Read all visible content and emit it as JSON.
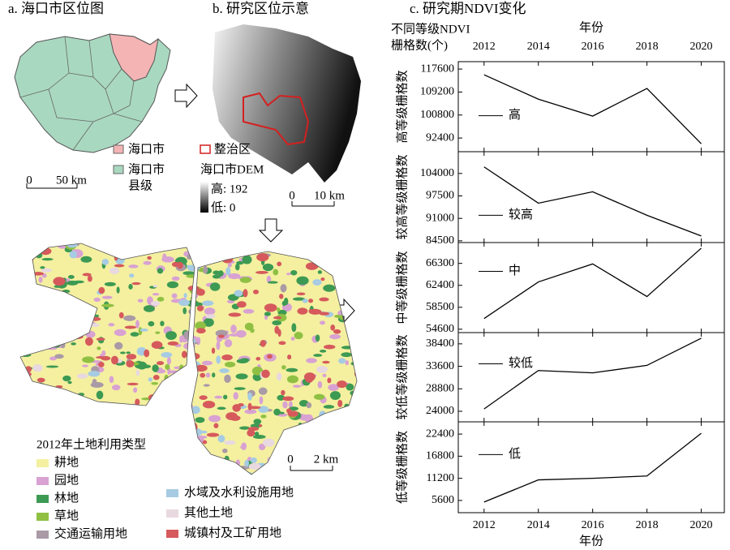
{
  "panel_a": {
    "title": "a. 海口市区位图",
    "legend": [
      {
        "label": [
          "海口市"
        ],
        "color": "#f4b4b4"
      },
      {
        "label": [
          "海口市",
          "县级"
        ],
        "color": "#a9d8c0"
      }
    ],
    "scale": [
      "0",
      "50 km"
    ]
  },
  "panel_b": {
    "title": "b. 研究区位示意",
    "outline_label": "整治区",
    "outline_color": "#d42020",
    "dem_label": "海口市DEM",
    "high": "高: 192",
    "low": "低: 0",
    "scale": [
      "0",
      "10 km"
    ]
  },
  "panel_d": {
    "legend_title": "2012年土地利用类型",
    "legend": [
      {
        "label": "耕地",
        "color": "#f4f0a0"
      },
      {
        "label": "园地",
        "color": "#d8a2d2"
      },
      {
        "label": "林地",
        "color": "#3d9a52"
      },
      {
        "label": "草地",
        "color": "#8fc043"
      },
      {
        "label": "交通运输用地",
        "color": "#a99aa6"
      },
      {
        "label": "水域及水利设施用地",
        "color": "#a6cbe3"
      },
      {
        "label": "其他土地",
        "color": "#e8d8e0"
      },
      {
        "label": "城镇村及工矿用地",
        "color": "#d65a5c"
      }
    ],
    "scale": [
      "0",
      "2 km"
    ]
  },
  "panel_c": {
    "title": "c. 研究期NDVI变化",
    "header": [
      "不同等级NDVI",
      "栅格数(个)"
    ]
  },
  "chart_data": [
    {
      "type": "line",
      "ylabel": "高等级栅格数",
      "annotation": "高",
      "xlabel": "年份",
      "x": [
        2012,
        2014,
        2016,
        2018,
        2020
      ],
      "xlim": [
        2011.05,
        2020.85
      ],
      "xticks": [
        2012,
        2014,
        2016,
        2018,
        2020
      ],
      "values": [
        115500,
        106600,
        100400,
        110500,
        90300
      ],
      "ylim": [
        87400,
        120300
      ],
      "yticks": [
        92400,
        100800,
        109200,
        117600
      ],
      "color": "#000000"
    },
    {
      "type": "line",
      "ylabel": "较高等级栅格数",
      "annotation": "较高",
      "x": [
        2012,
        2014,
        2016,
        2018,
        2020
      ],
      "xlim": [
        2011.05,
        2020.85
      ],
      "values": [
        105900,
        95400,
        98700,
        91900,
        85900
      ],
      "ylim": [
        84000,
        110300
      ],
      "yticks": [
        84500,
        91000,
        97500,
        104000
      ],
      "color": "#000000"
    },
    {
      "type": "line",
      "ylabel": "中等级栅格数",
      "annotation": "中",
      "x": [
        2012,
        2014,
        2016,
        2018,
        2020
      ],
      "xlim": [
        2011.05,
        2020.85
      ],
      "values": [
        56500,
        63000,
        66200,
        60400,
        69000
      ],
      "ylim": [
        54000,
        70000
      ],
      "yticks": [
        54600,
        58500,
        62400,
        66300
      ],
      "color": "#000000"
    },
    {
      "type": "line",
      "ylabel": "较低等级栅格数",
      "annotation": "较低",
      "x": [
        2012,
        2014,
        2016,
        2018,
        2020
      ],
      "xlim": [
        2011.05,
        2020.85
      ],
      "values": [
        24500,
        32700,
        32200,
        33800,
        39600
      ],
      "ylim": [
        21750,
        40800
      ],
      "yticks": [
        24000,
        28800,
        33600,
        38400
      ],
      "color": "#000000"
    },
    {
      "type": "line",
      "ylabel": "低等级栅格数",
      "annotation": "低",
      "xlabel": "年份",
      "x": [
        2012,
        2014,
        2016,
        2018,
        2020
      ],
      "xlim": [
        2011.05,
        2020.85
      ],
      "xticks": [
        2012,
        2014,
        2016,
        2018,
        2020
      ],
      "values": [
        5200,
        10800,
        11200,
        11800,
        22600
      ],
      "ylim": [
        2500,
        25500
      ],
      "yticks": [
        5600,
        11200,
        16800,
        22400
      ],
      "color": "#000000"
    }
  ]
}
